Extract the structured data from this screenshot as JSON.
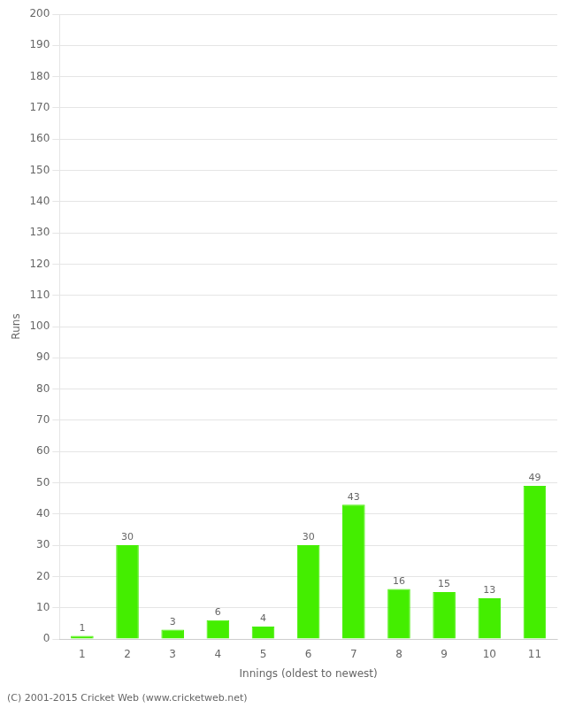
{
  "chart_data": {
    "type": "bar",
    "categories": [
      1,
      2,
      3,
      4,
      5,
      6,
      7,
      8,
      9,
      10,
      11
    ],
    "values": [
      1,
      30,
      3,
      6,
      4,
      30,
      43,
      16,
      15,
      13,
      49
    ],
    "color": "#44ee00",
    "xlabel": "Innings (oldest to newest)",
    "ylabel": "Runs",
    "ylim": [
      0,
      200
    ],
    "yticks": [
      0,
      10,
      20,
      30,
      40,
      50,
      60,
      70,
      80,
      90,
      100,
      110,
      120,
      130,
      140,
      150,
      160,
      170,
      180,
      190,
      200
    ],
    "grid": true,
    "data_labels": true,
    "annotations": [
      "(C) 2001-2015 Cricket Web (www.cricketweb.net)"
    ]
  }
}
